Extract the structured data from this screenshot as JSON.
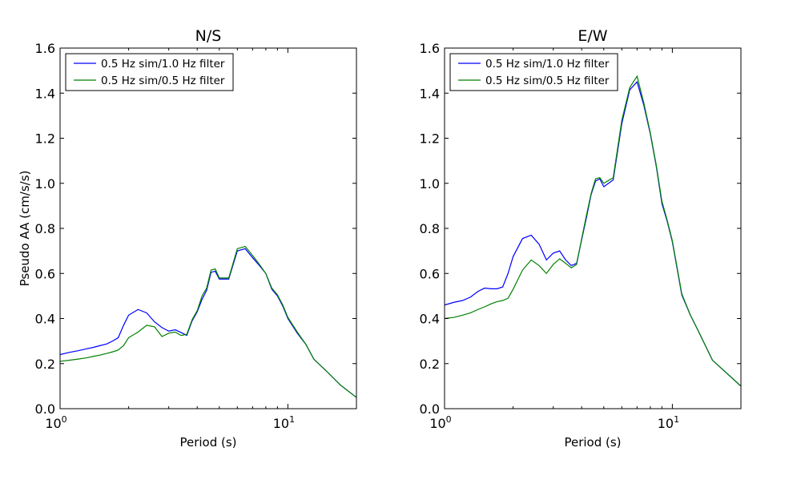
{
  "chart_data": [
    {
      "type": "line",
      "title": "N/S",
      "xlabel": "Period (s)",
      "ylabel": "Pseudo AA (cm/s/s)",
      "xscale": "log",
      "xlim": [
        1,
        20
      ],
      "ylim": [
        0,
        1.6
      ],
      "yticks": [
        "0.0",
        "0.2",
        "0.4",
        "0.6",
        "0.8",
        "1.0",
        "1.2",
        "1.4",
        "1.6"
      ],
      "legend_position": "top-left",
      "series": [
        {
          "name": "0.5 Hz sim/1.0 Hz filter",
          "color": "#0000ff",
          "x": [
            1.0,
            1.1,
            1.2,
            1.3,
            1.4,
            1.5,
            1.6,
            1.7,
            1.8,
            1.9,
            2.0,
            2.2,
            2.4,
            2.6,
            2.8,
            3.0,
            3.2,
            3.4,
            3.6,
            3.8,
            4.0,
            4.2,
            4.4,
            4.6,
            4.8,
            5.0,
            5.5,
            6.0,
            6.5,
            7.0,
            7.5,
            8.0,
            8.5,
            9.0,
            9.5,
            10.0,
            11.0,
            12.0,
            13.0,
            15.0,
            17.0,
            20.0
          ],
          "y": [
            0.24,
            0.25,
            0.257,
            0.265,
            0.272,
            0.28,
            0.287,
            0.3,
            0.315,
            0.37,
            0.415,
            0.44,
            0.425,
            0.385,
            0.36,
            0.344,
            0.35,
            0.338,
            0.325,
            0.39,
            0.43,
            0.485,
            0.525,
            0.605,
            0.61,
            0.575,
            0.575,
            0.7,
            0.71,
            0.67,
            0.635,
            0.6,
            0.53,
            0.5,
            0.455,
            0.4,
            0.335,
            0.285,
            0.22,
            0.16,
            0.105,
            0.05
          ]
        },
        {
          "name": "0.5 Hz sim/0.5 Hz filter",
          "color": "#008000",
          "x": [
            1.0,
            1.1,
            1.2,
            1.3,
            1.4,
            1.5,
            1.6,
            1.7,
            1.8,
            1.9,
            2.0,
            2.2,
            2.4,
            2.6,
            2.8,
            3.0,
            3.2,
            3.4,
            3.6,
            3.8,
            4.0,
            4.2,
            4.4,
            4.6,
            4.8,
            5.0,
            5.5,
            6.0,
            6.5,
            7.0,
            7.5,
            8.0,
            8.5,
            9.0,
            9.5,
            10.0,
            11.0,
            12.0,
            13.0,
            15.0,
            17.0,
            20.0
          ],
          "y": [
            0.21,
            0.215,
            0.22,
            0.225,
            0.232,
            0.238,
            0.245,
            0.252,
            0.26,
            0.28,
            0.315,
            0.34,
            0.37,
            0.363,
            0.32,
            0.335,
            0.34,
            0.325,
            0.33,
            0.395,
            0.435,
            0.5,
            0.535,
            0.615,
            0.62,
            0.58,
            0.58,
            0.71,
            0.72,
            0.68,
            0.64,
            0.6,
            0.535,
            0.505,
            0.46,
            0.405,
            0.34,
            0.285,
            0.22,
            0.16,
            0.105,
            0.05
          ]
        }
      ]
    },
    {
      "type": "line",
      "title": "E/W",
      "xlabel": "Period (s)",
      "ylabel": "",
      "xscale": "log",
      "xlim": [
        1,
        20
      ],
      "ylim": [
        0,
        1.6
      ],
      "yticks": [
        "0.0",
        "0.2",
        "0.4",
        "0.6",
        "0.8",
        "1.0",
        "1.2",
        "1.4",
        "1.6"
      ],
      "legend_position": "top-left",
      "series": [
        {
          "name": "0.5 Hz sim/1.0 Hz filter",
          "color": "#0000ff",
          "x": [
            1.0,
            1.1,
            1.2,
            1.3,
            1.4,
            1.5,
            1.6,
            1.7,
            1.8,
            1.9,
            2.0,
            2.2,
            2.4,
            2.6,
            2.8,
            3.0,
            3.2,
            3.4,
            3.6,
            3.8,
            4.0,
            4.2,
            4.4,
            4.6,
            4.8,
            5.0,
            5.5,
            6.0,
            6.5,
            7.0,
            7.5,
            8.0,
            8.5,
            9.0,
            9.5,
            10.0,
            11.0,
            12.0,
            13.0,
            15.0,
            17.0,
            20.0
          ],
          "y": [
            0.46,
            0.472,
            0.48,
            0.495,
            0.52,
            0.535,
            0.532,
            0.532,
            0.54,
            0.6,
            0.675,
            0.755,
            0.77,
            0.73,
            0.66,
            0.69,
            0.7,
            0.66,
            0.635,
            0.645,
            0.75,
            0.85,
            0.95,
            1.01,
            1.02,
            0.985,
            1.015,
            1.265,
            1.415,
            1.45,
            1.345,
            1.22,
            1.075,
            0.91,
            0.83,
            0.74,
            0.505,
            0.415,
            0.345,
            0.215,
            0.165,
            0.1
          ]
        },
        {
          "name": "0.5 Hz sim/0.5 Hz filter",
          "color": "#008000",
          "x": [
            1.0,
            1.1,
            1.2,
            1.3,
            1.4,
            1.5,
            1.6,
            1.7,
            1.8,
            1.9,
            2.0,
            2.2,
            2.4,
            2.6,
            2.8,
            3.0,
            3.2,
            3.4,
            3.6,
            3.8,
            4.0,
            4.2,
            4.4,
            4.6,
            4.8,
            5.0,
            5.5,
            6.0,
            6.5,
            7.0,
            7.5,
            8.0,
            8.5,
            9.0,
            9.5,
            10.0,
            11.0,
            12.0,
            13.0,
            15.0,
            17.0,
            20.0
          ],
          "y": [
            0.4,
            0.405,
            0.415,
            0.425,
            0.44,
            0.452,
            0.465,
            0.475,
            0.48,
            0.49,
            0.53,
            0.615,
            0.66,
            0.635,
            0.6,
            0.64,
            0.665,
            0.645,
            0.625,
            0.64,
            0.755,
            0.86,
            0.955,
            1.02,
            1.025,
            1.0,
            1.025,
            1.28,
            1.425,
            1.475,
            1.355,
            1.225,
            1.08,
            0.92,
            0.835,
            0.745,
            0.51,
            0.415,
            0.345,
            0.215,
            0.165,
            0.1
          ]
        }
      ]
    }
  ]
}
